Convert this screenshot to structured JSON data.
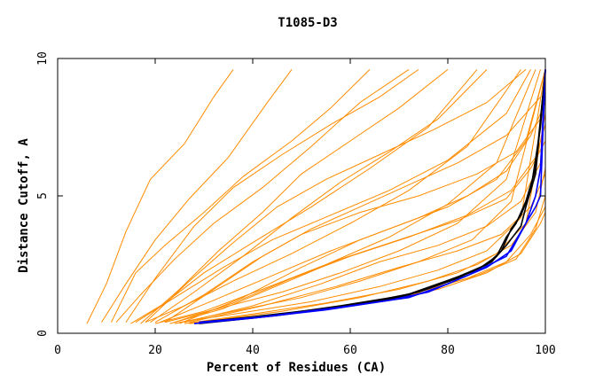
{
  "chart_data": {
    "type": "line",
    "title": "T1085-D3",
    "xlabel": "Percent of Residues (CA)",
    "ylabel": "Distance Cutoff, A",
    "xlim": [
      0,
      100
    ],
    "ylim": [
      0,
      10
    ],
    "x_ticks": [
      "0",
      "20",
      "40",
      "60",
      "80",
      "100"
    ],
    "y_ticks": [
      "0",
      "5",
      "10"
    ],
    "grid": false,
    "legend": "none",
    "colors": {
      "orange": "#ff8c00",
      "black": "#000000",
      "blue": "#0000ff"
    },
    "highlight_series": [
      {
        "color": "#000000",
        "points": [
          [
            29,
            0.4
          ],
          [
            40,
            0.6
          ],
          [
            55,
            0.9
          ],
          [
            70,
            1.3
          ],
          [
            78,
            1.8
          ],
          [
            86,
            2.3
          ],
          [
            90,
            2.8
          ],
          [
            92,
            3.5
          ],
          [
            94,
            4.0
          ],
          [
            96,
            4.8
          ],
          [
            98,
            6.0
          ],
          [
            100,
            9.6
          ]
        ]
      },
      {
        "color": "#000000",
        "points": [
          [
            30,
            0.4
          ],
          [
            42,
            0.6
          ],
          [
            58,
            1.0
          ],
          [
            72,
            1.4
          ],
          [
            80,
            1.9
          ],
          [
            88,
            2.5
          ],
          [
            91,
            3.0
          ],
          [
            93,
            3.8
          ],
          [
            95,
            4.3
          ],
          [
            97,
            5.2
          ],
          [
            99,
            7.5
          ],
          [
            100,
            9.6
          ]
        ]
      },
      {
        "color": "#000000",
        "points": [
          [
            29,
            0.35
          ],
          [
            45,
            0.65
          ],
          [
            60,
            1.0
          ],
          [
            74,
            1.5
          ],
          [
            82,
            2.0
          ],
          [
            89,
            2.6
          ],
          [
            92,
            3.2
          ],
          [
            95,
            3.9
          ],
          [
            96,
            4.6
          ],
          [
            98,
            5.8
          ],
          [
            100,
            9.6
          ]
        ]
      },
      {
        "color": "#0000ff",
        "points": [
          [
            28,
            0.35
          ],
          [
            40,
            0.55
          ],
          [
            55,
            0.85
          ],
          [
            68,
            1.2
          ],
          [
            76,
            1.5
          ],
          [
            84,
            2.1
          ],
          [
            92,
            2.8
          ],
          [
            96,
            4.0
          ],
          [
            98,
            4.6
          ],
          [
            99,
            5.0
          ],
          [
            100,
            9.6
          ]
        ]
      },
      {
        "color": "#0000ff",
        "points": [
          [
            29,
            0.4
          ],
          [
            42,
            0.6
          ],
          [
            58,
            0.95
          ],
          [
            72,
            1.3
          ],
          [
            80,
            1.8
          ],
          [
            88,
            2.4
          ],
          [
            93,
            3.0
          ],
          [
            96,
            4.0
          ],
          [
            98,
            5.0
          ],
          [
            99,
            6.0
          ],
          [
            100,
            9.6
          ]
        ]
      }
    ],
    "orange_series": [
      {
        "points": [
          [
            6,
            0.35
          ],
          [
            10,
            1.8
          ],
          [
            14,
            3.7
          ],
          [
            19,
            5.6
          ],
          [
            26,
            6.9
          ],
          [
            32,
            8.6
          ],
          [
            36,
            9.6
          ]
        ]
      },
      {
        "points": [
          [
            9,
            0.4
          ],
          [
            14,
            1.8
          ],
          [
            20,
            3.4
          ],
          [
            27,
            4.9
          ],
          [
            35,
            6.4
          ],
          [
            43,
            8.4
          ],
          [
            48,
            9.6
          ]
        ]
      },
      {
        "points": [
          [
            12,
            0.4
          ],
          [
            17,
            1.4
          ],
          [
            24,
            2.7
          ],
          [
            32,
            4.0
          ],
          [
            42,
            5.3
          ],
          [
            52,
            6.8
          ],
          [
            62,
            8.4
          ],
          [
            72,
            9.6
          ]
        ]
      },
      {
        "points": [
          [
            15,
            0.35
          ],
          [
            22,
            1.1
          ],
          [
            30,
            2.2
          ],
          [
            40,
            3.3
          ],
          [
            52,
            4.6
          ],
          [
            64,
            6.0
          ],
          [
            76,
            7.5
          ],
          [
            86,
            9.6
          ]
        ]
      },
      {
        "points": [
          [
            18,
            0.4
          ],
          [
            26,
            1.0
          ],
          [
            36,
            1.9
          ],
          [
            48,
            2.9
          ],
          [
            60,
            4.0
          ],
          [
            72,
            5.2
          ],
          [
            84,
            6.8
          ],
          [
            95,
            9.6
          ]
        ]
      },
      {
        "points": [
          [
            20,
            0.35
          ],
          [
            30,
            0.8
          ],
          [
            42,
            1.6
          ],
          [
            55,
            2.5
          ],
          [
            68,
            3.5
          ],
          [
            80,
            4.7
          ],
          [
            90,
            6.2
          ],
          [
            98,
            9.6
          ]
        ]
      },
      {
        "points": [
          [
            22,
            0.4
          ],
          [
            33,
            0.9
          ],
          [
            46,
            1.5
          ],
          [
            58,
            2.2
          ],
          [
            70,
            3.0
          ],
          [
            82,
            4.0
          ],
          [
            92,
            5.6
          ],
          [
            99,
            9.6
          ]
        ]
      },
      {
        "points": [
          [
            24,
            0.35
          ],
          [
            36,
            0.8
          ],
          [
            50,
            1.3
          ],
          [
            62,
            1.9
          ],
          [
            74,
            2.6
          ],
          [
            85,
            3.4
          ],
          [
            93,
            4.8
          ],
          [
            100,
            9.6
          ]
        ]
      },
      {
        "points": [
          [
            25,
            0.4
          ],
          [
            38,
            0.75
          ],
          [
            52,
            1.15
          ],
          [
            66,
            1.7
          ],
          [
            78,
            2.3
          ],
          [
            88,
            3.0
          ],
          [
            95,
            4.2
          ],
          [
            100,
            9.6
          ]
        ]
      },
      {
        "points": [
          [
            26,
            0.35
          ],
          [
            40,
            0.7
          ],
          [
            55,
            1.1
          ],
          [
            70,
            1.6
          ],
          [
            82,
            2.2
          ],
          [
            90,
            2.9
          ],
          [
            96,
            4.0
          ],
          [
            100,
            8.0
          ]
        ]
      },
      {
        "points": [
          [
            16,
            0.4
          ],
          [
            24,
            1.3
          ],
          [
            34,
            2.4
          ],
          [
            44,
            3.4
          ],
          [
            56,
            4.3
          ],
          [
            68,
            5.2
          ],
          [
            80,
            6.3
          ],
          [
            92,
            8.0
          ],
          [
            97,
            9.6
          ]
        ]
      },
      {
        "points": [
          [
            21,
            0.4
          ],
          [
            32,
            1.2
          ],
          [
            44,
            2.1
          ],
          [
            56,
            3.0
          ],
          [
            68,
            3.8
          ],
          [
            80,
            4.6
          ],
          [
            90,
            5.6
          ],
          [
            96,
            7.0
          ],
          [
            100,
            9.6
          ]
        ]
      },
      {
        "points": [
          [
            23,
            0.35
          ],
          [
            34,
            0.9
          ],
          [
            46,
            1.8
          ],
          [
            58,
            2.7
          ],
          [
            70,
            3.4
          ],
          [
            82,
            4.1
          ],
          [
            92,
            4.9
          ],
          [
            97,
            6.0
          ],
          [
            100,
            7.0
          ]
        ]
      },
      {
        "points": [
          [
            19,
            0.4
          ],
          [
            28,
            1.5
          ],
          [
            38,
            2.8
          ],
          [
            48,
            4.2
          ],
          [
            58,
            5.5
          ],
          [
            68,
            6.6
          ],
          [
            78,
            7.8
          ],
          [
            88,
            9.6
          ]
        ]
      },
      {
        "points": [
          [
            14,
            0.4
          ],
          [
            20,
            2.0
          ],
          [
            28,
            3.9
          ],
          [
            36,
            5.3
          ],
          [
            46,
            6.5
          ],
          [
            56,
            7.6
          ],
          [
            66,
            8.6
          ],
          [
            74,
            9.6
          ]
        ]
      },
      {
        "points": [
          [
            27,
            0.35
          ],
          [
            42,
            0.6
          ],
          [
            58,
            1.0
          ],
          [
            72,
            1.4
          ],
          [
            84,
            2.0
          ],
          [
            92,
            2.6
          ],
          [
            97,
            3.6
          ],
          [
            100,
            4.6
          ]
        ]
      },
      {
        "points": [
          [
            28,
            0.4
          ],
          [
            44,
            0.65
          ],
          [
            60,
            1.0
          ],
          [
            74,
            1.5
          ],
          [
            86,
            2.1
          ],
          [
            94,
            2.7
          ],
          [
            98,
            3.8
          ],
          [
            100,
            5.0
          ]
        ]
      },
      {
        "points": [
          [
            22,
            0.4
          ],
          [
            32,
            1.6
          ],
          [
            42,
            2.8
          ],
          [
            52,
            3.8
          ],
          [
            62,
            4.6
          ],
          [
            72,
            5.4
          ],
          [
            82,
            6.2
          ],
          [
            92,
            7.2
          ],
          [
            99,
            8.6
          ]
        ]
      },
      {
        "points": [
          [
            17,
            0.35
          ],
          [
            25,
            1.6
          ],
          [
            33,
            3.0
          ],
          [
            42,
            4.4
          ],
          [
            50,
            5.8
          ],
          [
            60,
            7.0
          ],
          [
            70,
            8.2
          ],
          [
            80,
            9.6
          ]
        ]
      },
      {
        "points": [
          [
            24,
            0.4
          ],
          [
            36,
            1.1
          ],
          [
            48,
            2.0
          ],
          [
            60,
            2.8
          ],
          [
            72,
            3.5
          ],
          [
            84,
            4.3
          ],
          [
            93,
            5.2
          ],
          [
            98,
            6.4
          ],
          [
            100,
            7.6
          ]
        ]
      },
      {
        "points": [
          [
            29,
            0.4
          ],
          [
            46,
            0.8
          ],
          [
            62,
            1.3
          ],
          [
            76,
            1.9
          ],
          [
            86,
            2.5
          ],
          [
            93,
            3.2
          ],
          [
            98,
            4.4
          ],
          [
            100,
            6.0
          ]
        ]
      },
      {
        "points": [
          [
            20,
            0.4
          ],
          [
            30,
            1.4
          ],
          [
            40,
            2.6
          ],
          [
            50,
            3.6
          ],
          [
            62,
            4.4
          ],
          [
            74,
            5.0
          ],
          [
            86,
            5.8
          ],
          [
            94,
            6.6
          ],
          [
            99,
            7.8
          ]
        ]
      },
      {
        "points": [
          [
            26,
            0.4
          ],
          [
            40,
            1.0
          ],
          [
            54,
            1.8
          ],
          [
            66,
            2.6
          ],
          [
            78,
            3.2
          ],
          [
            88,
            3.9
          ],
          [
            95,
            4.8
          ],
          [
            99,
            6.2
          ],
          [
            100,
            9.6
          ]
        ]
      },
      {
        "points": [
          [
            18,
            0.4
          ],
          [
            27,
            1.9
          ],
          [
            36,
            3.3
          ],
          [
            45,
            4.6
          ],
          [
            55,
            5.6
          ],
          [
            66,
            6.5
          ],
          [
            77,
            7.4
          ],
          [
            88,
            8.4
          ],
          [
            96,
            9.6
          ]
        ]
      },
      {
        "points": [
          [
            11,
            0.4
          ],
          [
            16,
            2.2
          ],
          [
            22,
            3.2
          ],
          [
            30,
            4.4
          ],
          [
            38,
            5.7
          ],
          [
            48,
            7.0
          ],
          [
            56,
            8.2
          ],
          [
            64,
            9.6
          ]
        ]
      },
      {
        "points": [
          [
            30,
            0.4
          ],
          [
            48,
            0.75
          ],
          [
            64,
            1.1
          ],
          [
            78,
            1.6
          ],
          [
            88,
            2.2
          ],
          [
            95,
            2.9
          ],
          [
            99,
            4.0
          ],
          [
            100,
            4.4
          ]
        ]
      },
      {
        "points": [
          [
            25,
            0.35
          ],
          [
            38,
            1.3
          ],
          [
            50,
            2.4
          ],
          [
            62,
            3.4
          ],
          [
            74,
            4.2
          ],
          [
            84,
            5.0
          ],
          [
            92,
            5.9
          ],
          [
            97,
            7.2
          ],
          [
            100,
            8.4
          ]
        ]
      },
      {
        "points": [
          [
            27,
            0.4
          ],
          [
            42,
            1.0
          ],
          [
            57,
            1.7
          ],
          [
            70,
            2.4
          ],
          [
            82,
            3.0
          ],
          [
            91,
            3.6
          ],
          [
            97,
            4.6
          ],
          [
            100,
            5.8
          ]
        ]
      }
    ]
  }
}
